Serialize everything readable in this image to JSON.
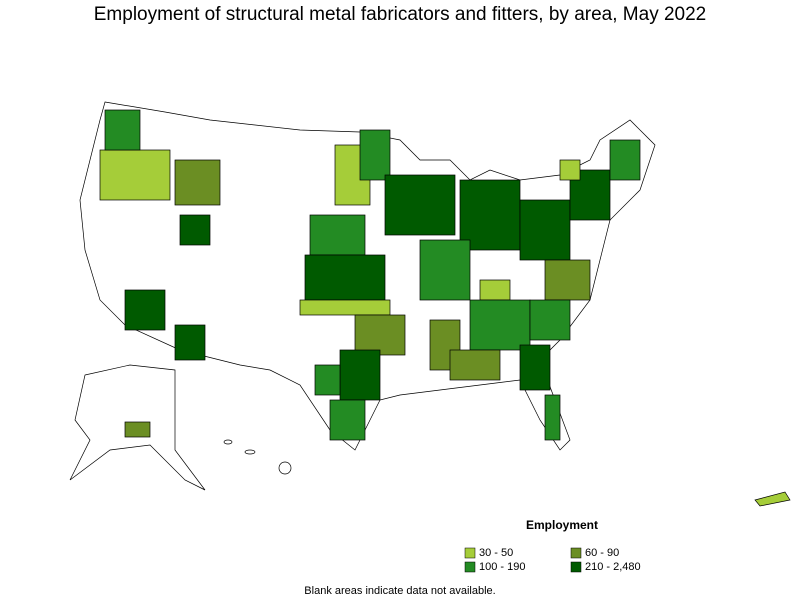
{
  "title": "Employment of structural metal fabricators and fitters, by area, May 2022",
  "legend": {
    "title": "Employment",
    "items": [
      {
        "label": "30 - 50",
        "color": "#a5cd39"
      },
      {
        "label": "60 - 90",
        "color": "#6b8e23"
      },
      {
        "label": "100 - 190",
        "color": "#238b23"
      },
      {
        "label": "210 - 2,480",
        "color": "#005a00"
      }
    ]
  },
  "footnote": "Blank areas indicate data not available."
}
